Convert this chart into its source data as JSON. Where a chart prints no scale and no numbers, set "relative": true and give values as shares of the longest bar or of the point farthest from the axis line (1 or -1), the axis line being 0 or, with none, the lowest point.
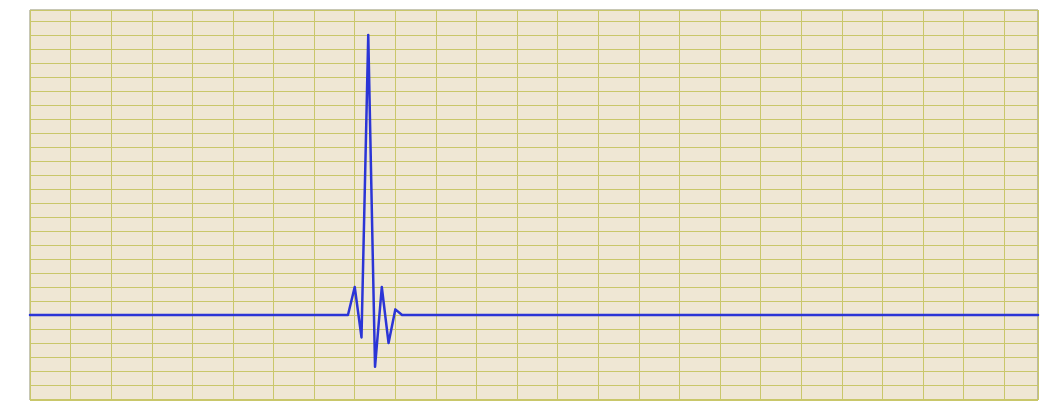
{
  "chart_data": {
    "type": "line",
    "relative": true,
    "grid": true,
    "marker": "none",
    "line_style": "solid",
    "categories": [
      null,
      null,
      null,
      null,
      null,
      null,
      null,
      null,
      null,
      null,
      null,
      null,
      null,
      null,
      null,
      null,
      null,
      null,
      null,
      null,
      null,
      null,
      null,
      null,
      null,
      null,
      null,
      null,
      null,
      null,
      null,
      null,
      null,
      null,
      null,
      null,
      null,
      null,
      null,
      null,
      null,
      null,
      null,
      null,
      null,
      null,
      null,
      null,
      null,
      null,
      null,
      null,
      null,
      null,
      null,
      null,
      null,
      null,
      null,
      null,
      null,
      null,
      null,
      null,
      null,
      null,
      null,
      null,
      null,
      null,
      null,
      null,
      null,
      null,
      null,
      null,
      null,
      null,
      null,
      null,
      null,
      null,
      null,
      null,
      null,
      null,
      null,
      null,
      null,
      null,
      null,
      null,
      null,
      null,
      null,
      null,
      null,
      null,
      null,
      null,
      null,
      null,
      null,
      null,
      null,
      null,
      null,
      null,
      null,
      null,
      null,
      null,
      null,
      null,
      null,
      null,
      null,
      null,
      null,
      null,
      null,
      null,
      null,
      null,
      null,
      null,
      null,
      null,
      null,
      null,
      null,
      null,
      null,
      null,
      null,
      null,
      null,
      null,
      null,
      null,
      null,
      null,
      null,
      null,
      null,
      null,
      null,
      null,
      null,
      null
    ],
    "series": [
      {
        "color": "#2b35d6",
        "values": [
          0,
          0,
          0,
          0,
          0,
          0,
          0,
          0,
          0,
          0,
          0,
          0,
          0,
          0,
          0,
          0,
          0,
          0,
          0,
          0,
          0,
          0,
          0,
          0,
          0,
          0,
          0,
          0,
          0,
          0,
          0,
          0,
          0,
          0,
          0,
          0,
          0,
          0,
          0,
          0,
          0,
          0,
          0,
          0,
          0,
          0,
          0,
          0,
          0.1,
          -0.08,
          1,
          -0.185,
          0.1,
          -0.1,
          0.02,
          0,
          0,
          0,
          0,
          0,
          0,
          0,
          0,
          0,
          0,
          0,
          0,
          0,
          0,
          0,
          0,
          0,
          0,
          0,
          0,
          0,
          0,
          0,
          0,
          0,
          0,
          0,
          0,
          0,
          0,
          0,
          0,
          0,
          0,
          0,
          0,
          0,
          0,
          0,
          0,
          0,
          0,
          0,
          0,
          0,
          0,
          0,
          0,
          0,
          0,
          0,
          0,
          0,
          0,
          0,
          0,
          0,
          0,
          0,
          0,
          0,
          0,
          0,
          0,
          0,
          0,
          0,
          0,
          0,
          0,
          0,
          0,
          0,
          0,
          0,
          0,
          0,
          0,
          0,
          0,
          0,
          0,
          0,
          0,
          0,
          0,
          0,
          0,
          0,
          0,
          0,
          0,
          0,
          0,
          0
        ]
      }
    ]
  }
}
